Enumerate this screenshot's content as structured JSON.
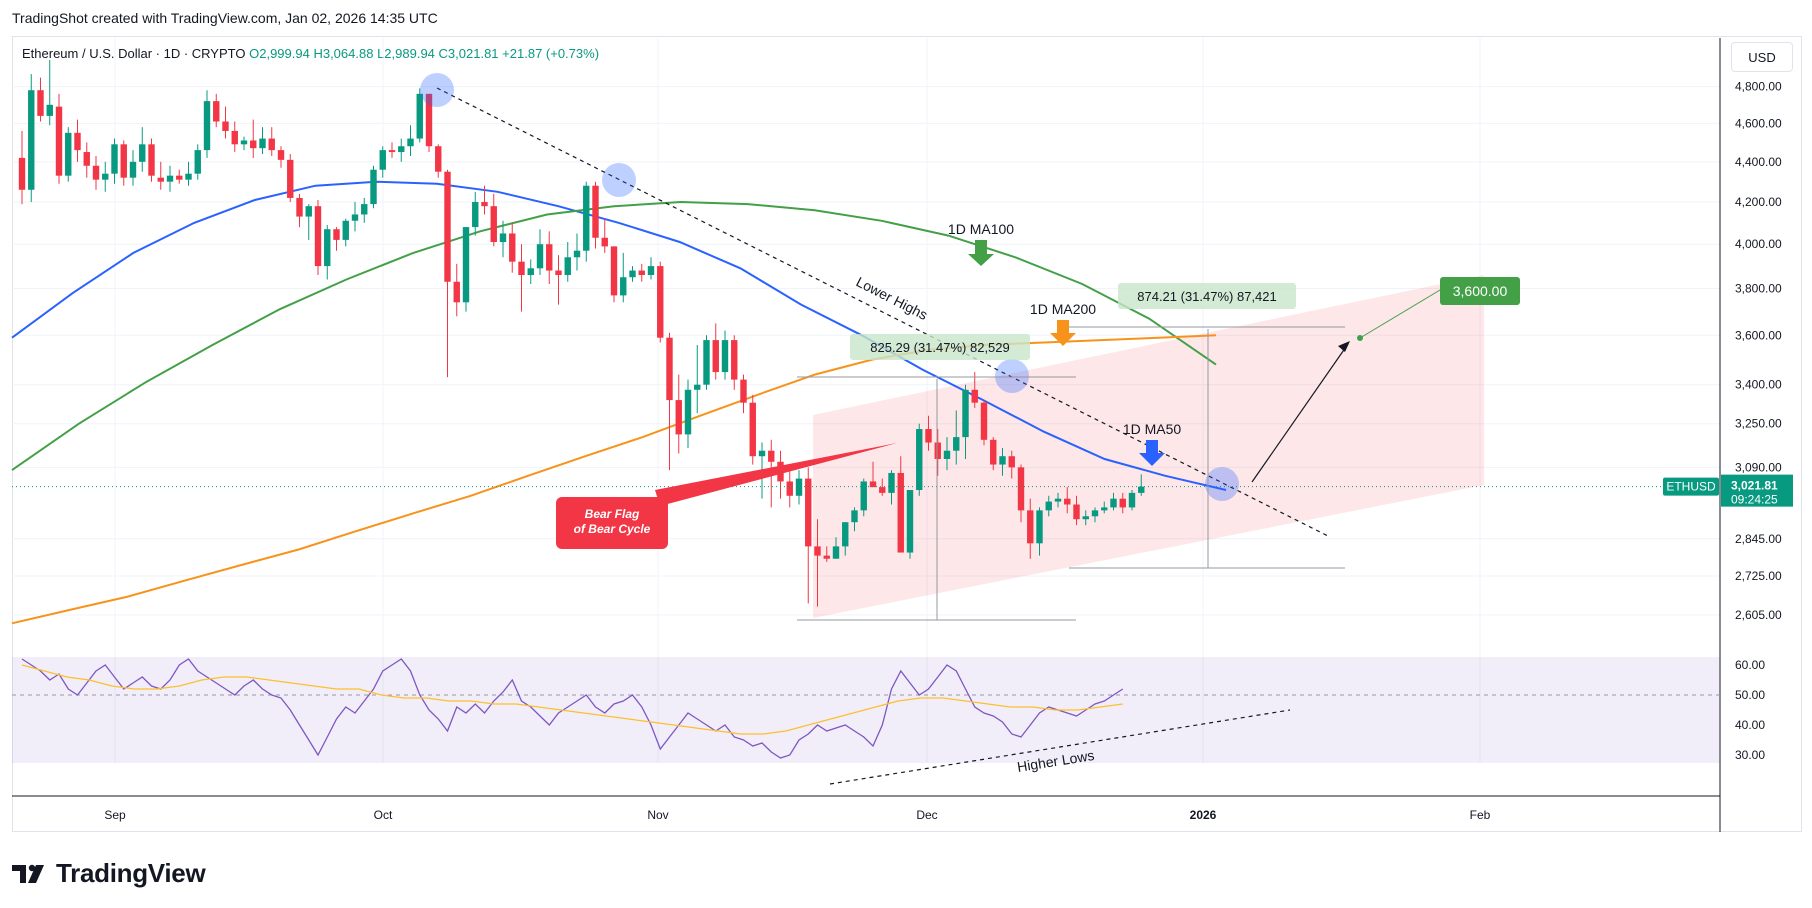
{
  "header": {
    "title": "TradingShot created with TradingView.com, Jan 02, 2026 14:35 UTC"
  },
  "legend": {
    "symbol": "Ethereum / U.S. Dollar · 1D · CRYPTO",
    "open": "O2,999.94",
    "high": "H3,064.88",
    "low": "L2,989.94",
    "close": "C3,021.81",
    "change": "+21.87 (+0.73%)"
  },
  "currency": "USD",
  "ticker_badge": "ETHUSD",
  "price_badge": {
    "price": "3,021.81",
    "countdown": "09:24:25"
  },
  "colors": {
    "up": "#089981",
    "down": "#f23645",
    "ma50": "#2962ff",
    "ma100": "#43a047",
    "ma200": "#f7931a",
    "rsi": "#7e57c2",
    "rsi_ma": "#fbc02d"
  },
  "annotations": {
    "ma100": "1D MA100",
    "ma200": "1D MA200",
    "ma50": "1D MA50",
    "lower_highs": "Lower Highs",
    "higher_lows": "Higher Lows",
    "bear_flag_1": "Bear Flag",
    "bear_flag_2": "of Bear Cycle",
    "measure_1": "825.29 (31.47%) 82,529",
    "measure_2": "874.21 (31.47%) 87,421",
    "target": "3,600.00"
  },
  "logo": {
    "text": "TradingView"
  },
  "chart_data": {
    "type": "candlestick",
    "x_axis": {
      "tick_labels": [
        "Sep",
        "Oct",
        "Nov",
        "Dec",
        "2026",
        "Feb"
      ]
    },
    "y_axis": {
      "scale": "log",
      "tick_labels": [
        "4,800.00",
        "4,600.00",
        "4,400.00",
        "4,200.00",
        "4,000.00",
        "3,800.00",
        "3,600.00",
        "3,400.00",
        "3,250.00",
        "3,090.00",
        "2,845.00",
        "2,725.00",
        "2,605.00"
      ],
      "range": [
        2560,
        4950
      ]
    },
    "candles": [
      [
        4420,
        4560,
        4190,
        4260
      ],
      [
        4260,
        4870,
        4200,
        4780
      ],
      [
        4780,
        4850,
        4610,
        4640
      ],
      [
        4640,
        4950,
        4590,
        4700
      ],
      [
        4690,
        4760,
        4290,
        4330
      ],
      [
        4330,
        4580,
        4300,
        4550
      ],
      [
        4550,
        4620,
        4400,
        4460
      ],
      [
        4450,
        4500,
        4320,
        4380
      ],
      [
        4380,
        4430,
        4260,
        4310
      ],
      [
        4310,
        4400,
        4250,
        4340
      ],
      [
        4340,
        4520,
        4290,
        4490
      ],
      [
        4490,
        4510,
        4280,
        4320
      ],
      [
        4320,
        4460,
        4280,
        4400
      ],
      [
        4400,
        4580,
        4350,
        4490
      ],
      [
        4490,
        4520,
        4300,
        4330
      ],
      [
        4320,
        4400,
        4260,
        4300
      ],
      [
        4300,
        4380,
        4250,
        4330
      ],
      [
        4330,
        4360,
        4290,
        4310
      ],
      [
        4310,
        4400,
        4280,
        4340
      ],
      [
        4340,
        4490,
        4310,
        4460
      ],
      [
        4460,
        4780,
        4420,
        4720
      ],
      [
        4720,
        4760,
        4580,
        4610
      ],
      [
        4610,
        4690,
        4520,
        4560
      ],
      [
        4560,
        4610,
        4450,
        4490
      ],
      [
        4490,
        4530,
        4460,
        4510
      ],
      [
        4510,
        4620,
        4420,
        4470
      ],
      [
        4470,
        4580,
        4440,
        4520
      ],
      [
        4520,
        4580,
        4430,
        4460
      ],
      [
        4460,
        4480,
        4370,
        4410
      ],
      [
        4410,
        4440,
        4200,
        4220
      ],
      [
        4220,
        4240,
        4080,
        4130
      ],
      [
        4130,
        4190,
        4020,
        4180
      ],
      [
        4180,
        4210,
        3860,
        3900
      ],
      [
        3900,
        4090,
        3840,
        4070
      ],
      [
        4070,
        4080,
        3970,
        4020
      ],
      [
        4020,
        4120,
        3990,
        4110
      ],
      [
        4110,
        4200,
        4060,
        4140
      ],
      [
        4140,
        4220,
        4100,
        4190
      ],
      [
        4190,
        4380,
        4170,
        4360
      ],
      [
        4360,
        4480,
        4320,
        4460
      ],
      [
        4460,
        4500,
        4420,
        4450
      ],
      [
        4450,
        4520,
        4400,
        4480
      ],
      [
        4480,
        4590,
        4430,
        4520
      ],
      [
        4520,
        4790,
        4500,
        4760
      ],
      [
        4760,
        4760,
        4450,
        4480
      ],
      [
        4480,
        4490,
        4320,
        4350
      ],
      [
        4350,
        4360,
        3430,
        3830
      ],
      [
        3830,
        3910,
        3680,
        3740
      ],
      [
        3740,
        4080,
        3700,
        4080
      ],
      [
        4080,
        4250,
        4040,
        4200
      ],
      [
        4200,
        4280,
        4140,
        4180
      ],
      [
        4180,
        4240,
        3990,
        4010
      ],
      [
        4010,
        4110,
        3940,
        4050
      ],
      [
        4050,
        4100,
        3870,
        3920
      ],
      [
        3920,
        4000,
        3700,
        3860
      ],
      [
        3860,
        3930,
        3820,
        3890
      ],
      [
        3890,
        4070,
        3860,
        4000
      ],
      [
        4000,
        4060,
        3820,
        3880
      ],
      [
        3880,
        3950,
        3730,
        3860
      ],
      [
        3860,
        4010,
        3830,
        3940
      ],
      [
        3940,
        4050,
        3880,
        3970
      ],
      [
        3970,
        4300,
        3920,
        4280
      ],
      [
        4280,
        4300,
        3980,
        4030
      ],
      [
        4030,
        4120,
        3960,
        3990
      ],
      [
        3990,
        3990,
        3740,
        3770
      ],
      [
        3770,
        3960,
        3740,
        3850
      ],
      [
        3850,
        3900,
        3830,
        3880
      ],
      [
        3880,
        3910,
        3830,
        3860
      ],
      [
        3860,
        3940,
        3840,
        3900
      ],
      [
        3900,
        3920,
        3570,
        3590
      ],
      [
        3590,
        3610,
        3080,
        3340
      ],
      [
        3340,
        3440,
        3140,
        3210
      ],
      [
        3210,
        3420,
        3160,
        3380
      ],
      [
        3380,
        3560,
        3290,
        3400
      ],
      [
        3400,
        3600,
        3380,
        3580
      ],
      [
        3580,
        3650,
        3420,
        3450
      ],
      [
        3450,
        3620,
        3420,
        3580
      ],
      [
        3580,
        3600,
        3380,
        3420
      ],
      [
        3420,
        3440,
        3290,
        3330
      ],
      [
        3330,
        3360,
        3100,
        3130
      ],
      [
        3130,
        3180,
        2980,
        3150
      ],
      [
        3150,
        3190,
        2950,
        3110
      ],
      [
        3110,
        3150,
        2980,
        3040
      ],
      [
        3040,
        3080,
        2950,
        2990
      ],
      [
        2990,
        3080,
        2960,
        3050
      ],
      [
        3050,
        3090,
        2640,
        2820
      ],
      [
        2820,
        2910,
        2630,
        2790
      ],
      [
        2790,
        2820,
        2770,
        2780
      ],
      [
        2780,
        2850,
        2780,
        2820
      ],
      [
        2820,
        2900,
        2790,
        2900
      ],
      [
        2900,
        2950,
        2870,
        2940
      ],
      [
        2940,
        3050,
        2920,
        3040
      ],
      [
        3040,
        3110,
        3030,
        3020
      ],
      [
        3020,
        3050,
        2990,
        3000
      ],
      [
        3000,
        3080,
        2960,
        3070
      ],
      [
        3070,
        3130,
        2800,
        2800
      ],
      [
        2800,
        3010,
        2780,
        3010
      ],
      [
        3010,
        3250,
        2990,
        3230
      ],
      [
        3230,
        3280,
        3150,
        3180
      ],
      [
        3180,
        3230,
        3060,
        3120
      ],
      [
        3120,
        3200,
        3080,
        3150
      ],
      [
        3150,
        3300,
        3100,
        3200
      ],
      [
        3200,
        3400,
        3120,
        3380
      ],
      [
        3380,
        3450,
        3310,
        3330
      ],
      [
        3330,
        3340,
        3170,
        3190
      ],
      [
        3190,
        3200,
        3080,
        3100
      ],
      [
        3100,
        3160,
        3060,
        3130
      ],
      [
        3130,
        3150,
        3050,
        3090
      ],
      [
        3090,
        3100,
        2900,
        2940
      ],
      [
        2940,
        2980,
        2780,
        2830
      ],
      [
        2830,
        2950,
        2790,
        2940
      ],
      [
        2940,
        2990,
        2920,
        2970
      ],
      [
        2970,
        3000,
        2950,
        2980
      ],
      [
        2980,
        3020,
        2930,
        2960
      ],
      [
        2960,
        2990,
        2890,
        2910
      ],
      [
        2910,
        2940,
        2890,
        2920
      ],
      [
        2920,
        2950,
        2900,
        2940
      ],
      [
        2940,
        2970,
        2930,
        2950
      ],
      [
        2950,
        3000,
        2940,
        2980
      ],
      [
        2980,
        3000,
        2930,
        2950
      ],
      [
        2950,
        3010,
        2940,
        3000
      ],
      [
        3000,
        3065,
        2990,
        3021.81
      ]
    ],
    "moving_averages": [
      {
        "name": "1D MA50",
        "values": [
          3590,
          3780,
          3960,
          4100,
          4210,
          4280,
          4300,
          4290,
          4250,
          4180,
          4100,
          4010,
          3890,
          3730,
          3600,
          3460,
          3340,
          3220,
          3120,
          3060,
          3010
        ]
      },
      {
        "name": "1D MA100",
        "values": [
          3080,
          3250,
          3410,
          3560,
          3710,
          3840,
          3960,
          4060,
          4140,
          4180,
          4200,
          4190,
          4160,
          4110,
          4040,
          3940,
          3820,
          3670,
          3480
        ]
      },
      {
        "name": "1D MA200",
        "values": [
          2580,
          2620,
          2660,
          2710,
          2760,
          2810,
          2870,
          2930,
          2990,
          3060,
          3130,
          3200,
          3280,
          3360,
          3440,
          3500,
          3540,
          3560,
          3570,
          3580,
          3590,
          3600
        ]
      }
    ],
    "rsi": {
      "tick_labels": [
        "60.00",
        "50.00",
        "40.00",
        "30.00"
      ],
      "range": [
        25,
        65
      ],
      "values": [
        62,
        60,
        58,
        55,
        57,
        52,
        50,
        54,
        58,
        60,
        56,
        52,
        54,
        56,
        53,
        52,
        55,
        60,
        62,
        58,
        56,
        54,
        52,
        50,
        53,
        55,
        52,
        50,
        49,
        45,
        40,
        35,
        30,
        36,
        42,
        46,
        44,
        48,
        52,
        58,
        60,
        62,
        58,
        50,
        45,
        42,
        38,
        46,
        44,
        47,
        44,
        48,
        51,
        55,
        48,
        46,
        43,
        40,
        44,
        46,
        48,
        50,
        46,
        44,
        47,
        48,
        50,
        46,
        40,
        32,
        36,
        40,
        44,
        42,
        40,
        38,
        40,
        36,
        35,
        33,
        34,
        31,
        29,
        30,
        35,
        37,
        40,
        38,
        39,
        40,
        38,
        36,
        33,
        40,
        52,
        58,
        54,
        50,
        52,
        56,
        60,
        58,
        52,
        46,
        44,
        43,
        41,
        37,
        36,
        40,
        44,
        46,
        45,
        44,
        43,
        45,
        47,
        48,
        50,
        52
      ],
      "ma_values": [
        60,
        58,
        56,
        55,
        53,
        52,
        52,
        53,
        55,
        56,
        56,
        55,
        54,
        53,
        52,
        52,
        50,
        49,
        49,
        48,
        48,
        47,
        47,
        46,
        45,
        44,
        43,
        42,
        41,
        40,
        39,
        38,
        37,
        37,
        38,
        40,
        42,
        44,
        46,
        48,
        49,
        49,
        48,
        47,
        46,
        46,
        45,
        45,
        46,
        47
      ],
      "levels": [
        50
      ]
    }
  }
}
